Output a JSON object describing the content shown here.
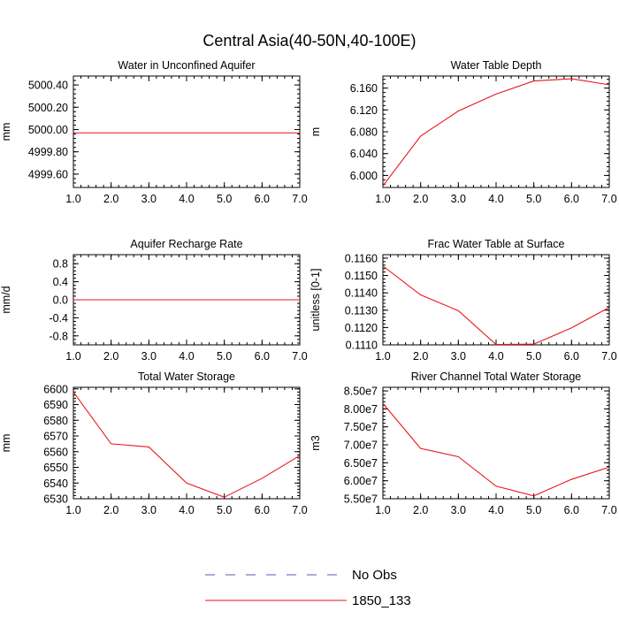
{
  "figure": {
    "title": "Central Asia(40-50N,40-100E)"
  },
  "legend": {
    "placement": "bottom-center",
    "entries": [
      {
        "name": "No Obs",
        "color": "#5a5ab4",
        "style": "dashed"
      },
      {
        "name": "1850_133",
        "color": "#e8141e",
        "style": "solid"
      }
    ]
  },
  "chart_data": [
    {
      "type": "line",
      "title": "Water in Unconfined Aquifer",
      "ylabel": "mm",
      "xlim": [
        1,
        7
      ],
      "ylim": [
        4999.48,
        5000.48
      ],
      "xticks": [
        1,
        2,
        3,
        4,
        5,
        6,
        7
      ],
      "xtick_labels": [
        "1.0",
        "2.0",
        "3.0",
        "4.0",
        "5.0",
        "6.0",
        "7.0"
      ],
      "yticks": [
        4999.6,
        4999.8,
        5000.0,
        5000.2,
        5000.4
      ],
      "ytick_labels": [
        "4999.60",
        "4999.80",
        "5000.00",
        "5000.20",
        "5000.40"
      ],
      "grid": false,
      "series": [
        {
          "name": "1850_133",
          "color": "#e8141e",
          "x": [
            1,
            2,
            3,
            4,
            5,
            6,
            7
          ],
          "values": [
            4999.97,
            4999.97,
            4999.97,
            4999.97,
            4999.97,
            4999.97,
            4999.97
          ]
        }
      ]
    },
    {
      "type": "line",
      "title": "Water Table Depth",
      "ylabel": "m",
      "xlim": [
        1,
        7
      ],
      "ylim": [
        5.978,
        6.182
      ],
      "xticks": [
        1,
        2,
        3,
        4,
        5,
        6,
        7
      ],
      "xtick_labels": [
        "1.0",
        "2.0",
        "3.0",
        "4.0",
        "5.0",
        "6.0",
        "7.0"
      ],
      "yticks": [
        6.0,
        6.04,
        6.08,
        6.12,
        6.16
      ],
      "ytick_labels": [
        "6.000",
        "6.040",
        "6.080",
        "6.120",
        "6.160"
      ],
      "grid": false,
      "series": [
        {
          "name": "1850_133",
          "color": "#e8141e",
          "x": [
            1,
            2,
            3,
            4,
            5,
            6,
            7
          ],
          "values": [
            5.981,
            6.072,
            6.118,
            6.149,
            6.173,
            6.177,
            6.166
          ]
        }
      ]
    },
    {
      "type": "line",
      "title": "Aquifer Recharge Rate",
      "ylabel": "mm/d",
      "xlim": [
        1,
        7
      ],
      "ylim": [
        -1.0,
        1.0
      ],
      "xticks": [
        1,
        2,
        3,
        4,
        5,
        6,
        7
      ],
      "xtick_labels": [
        "1.0",
        "2.0",
        "3.0",
        "4.0",
        "5.0",
        "6.0",
        "7.0"
      ],
      "yticks": [
        -0.8,
        -0.4,
        0.0,
        0.4,
        0.8
      ],
      "ytick_labels": [
        "-0.8",
        "-0.4",
        "0.0",
        "0.4",
        "0.8"
      ],
      "grid": false,
      "series": [
        {
          "name": "1850_133",
          "color": "#e8141e",
          "x": [
            1,
            2,
            3,
            4,
            5,
            6,
            7
          ],
          "values": [
            0.0,
            0.0,
            0.0,
            0.0,
            0.0,
            0.0,
            0.0
          ]
        }
      ]
    },
    {
      "type": "line",
      "title": "Frac Water Table at Surface",
      "ylabel": "unitless [0-1]",
      "xlim": [
        1,
        7
      ],
      "ylim": [
        0.111,
        0.1162
      ],
      "xticks": [
        1,
        2,
        3,
        4,
        5,
        6,
        7
      ],
      "xtick_labels": [
        "1.0",
        "2.0",
        "3.0",
        "4.0",
        "5.0",
        "6.0",
        "7.0"
      ],
      "yticks": [
        0.111,
        0.112,
        0.113,
        0.114,
        0.115,
        0.116
      ],
      "ytick_labels": [
        "0.1110",
        "0.1120",
        "0.1130",
        "0.1140",
        "0.1150",
        "0.1160"
      ],
      "grid": false,
      "series": [
        {
          "name": "1850_133",
          "color": "#e8141e",
          "x": [
            1,
            2,
            3,
            4,
            5,
            6,
            7
          ],
          "values": [
            0.11555,
            0.11388,
            0.11297,
            0.11102,
            0.11104,
            0.11198,
            0.11316
          ]
        }
      ]
    },
    {
      "type": "line",
      "title": "Total Water Storage",
      "ylabel": "mm",
      "xlim": [
        1,
        7
      ],
      "ylim": [
        6530,
        6601
      ],
      "xticks": [
        1,
        2,
        3,
        4,
        5,
        6,
        7
      ],
      "xtick_labels": [
        "1.0",
        "2.0",
        "3.0",
        "4.0",
        "5.0",
        "6.0",
        "7.0"
      ],
      "yticks": [
        6530,
        6540,
        6550,
        6560,
        6570,
        6580,
        6590,
        6600
      ],
      "ytick_labels": [
        "6530",
        "6540",
        "6550",
        "6560",
        "6570",
        "6580",
        "6590",
        "6600"
      ],
      "grid": false,
      "series": [
        {
          "name": "1850_133",
          "color": "#e8141e",
          "x": [
            1,
            2,
            3,
            4,
            5,
            6,
            7
          ],
          "values": [
            6598,
            6565,
            6563,
            6540,
            6531,
            6543,
            6557.5
          ]
        }
      ]
    },
    {
      "type": "line",
      "title": "River Channel Total Water Storage",
      "ylabel": "m3",
      "xlim": [
        1,
        7
      ],
      "ylim": [
        55000000,
        86000000
      ],
      "xticks": [
        1,
        2,
        3,
        4,
        5,
        6,
        7
      ],
      "xtick_labels": [
        "1.0",
        "2.0",
        "3.0",
        "4.0",
        "5.0",
        "6.0",
        "7.0"
      ],
      "yticks": [
        55000000,
        60000000,
        65000000,
        70000000,
        75000000,
        80000000,
        85000000
      ],
      "ytick_labels": [
        "5.50e7",
        "6.00e7",
        "6.50e7",
        "7.00e7",
        "7.50e7",
        "8.00e7",
        "8.50e7"
      ],
      "grid": false,
      "series": [
        {
          "name": "1850_133",
          "color": "#e8141e",
          "x": [
            1,
            2,
            3,
            4,
            5,
            6,
            7
          ],
          "values": [
            81500000,
            69000000,
            66700000,
            58500000,
            55800000,
            60400000,
            63800000
          ]
        }
      ]
    }
  ]
}
